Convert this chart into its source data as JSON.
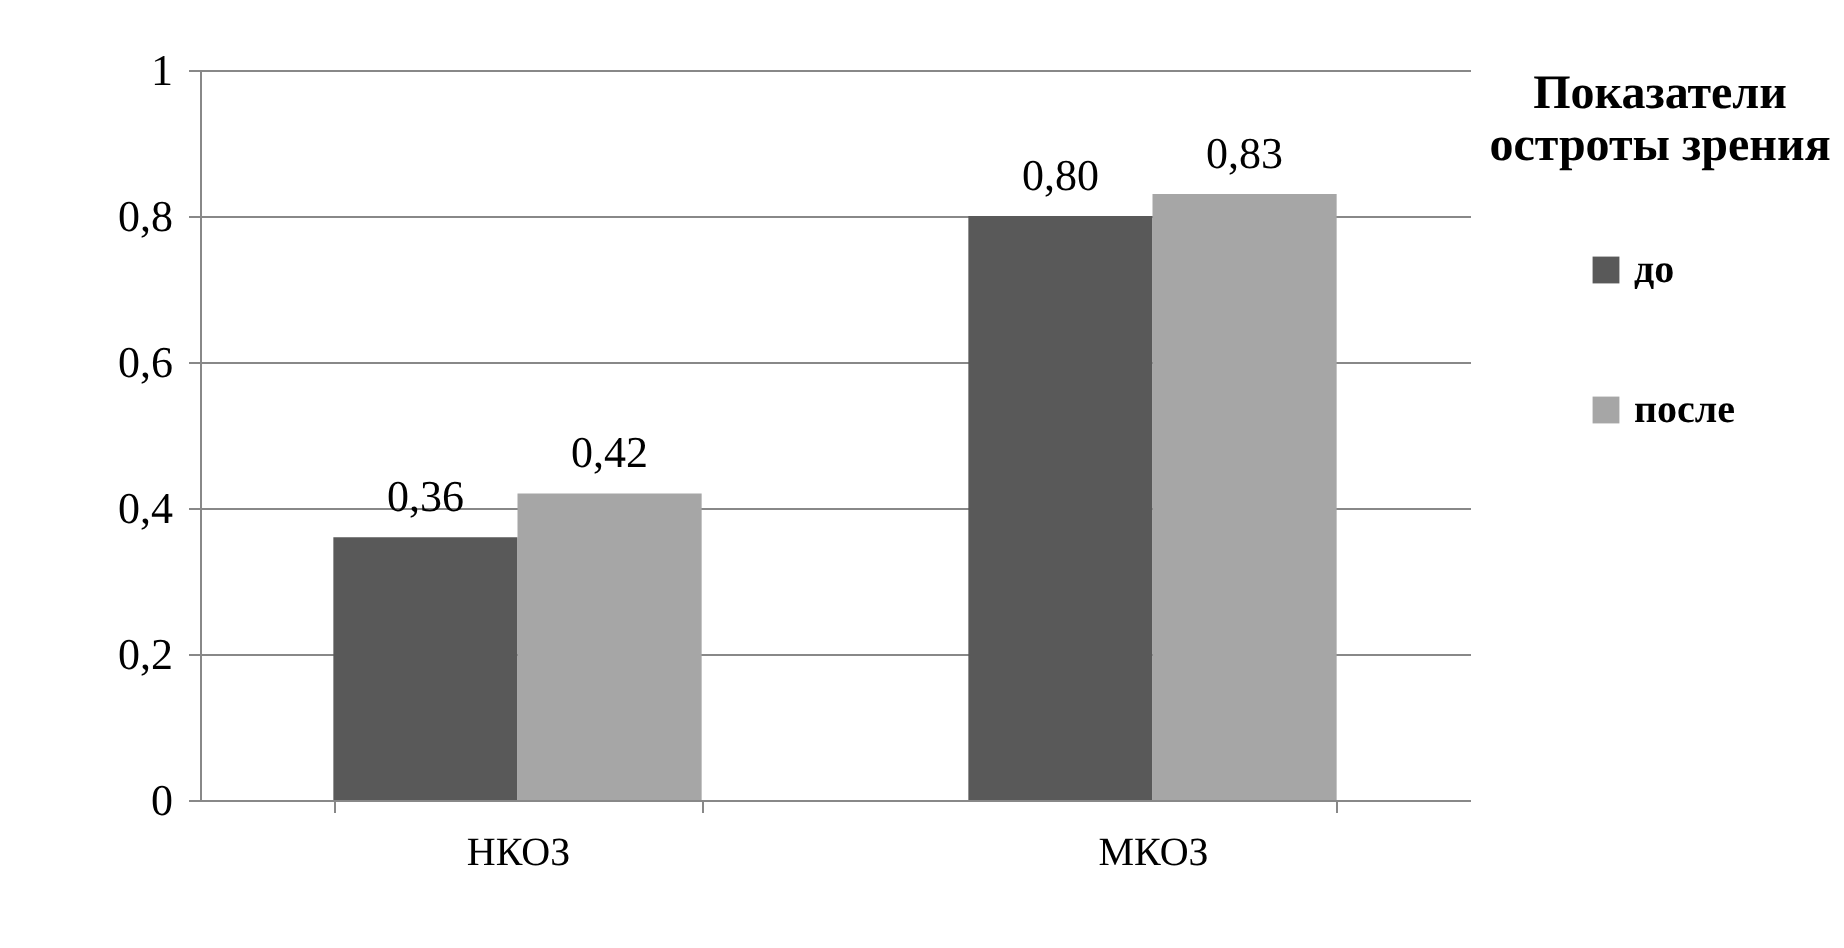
{
  "chart_data": {
    "type": "bar",
    "categories": [
      "НКОЗ",
      "МКОЗ"
    ],
    "series": [
      {
        "name": "до",
        "color": "#595959",
        "values": [
          0.36,
          0.8
        ],
        "value_labels": [
          "0,36",
          "0,80"
        ]
      },
      {
        "name": "после",
        "color": "#a6a6a6",
        "values": [
          0.42,
          0.83
        ],
        "value_labels": [
          "0,42",
          "0,83"
        ]
      }
    ],
    "legend_title": "Показатели остроты зрения",
    "legend": "right",
    "grid": "y",
    "ylim": [
      0,
      1
    ],
    "yticks": [
      0,
      {
        "value": 0.2,
        "label": "0,2"
      },
      {
        "value": 0.4,
        "label": "0,4"
      },
      {
        "value": 0.6,
        "label": "0,6"
      },
      {
        "value": 0.8,
        "label": "0,8"
      },
      1
    ]
  }
}
